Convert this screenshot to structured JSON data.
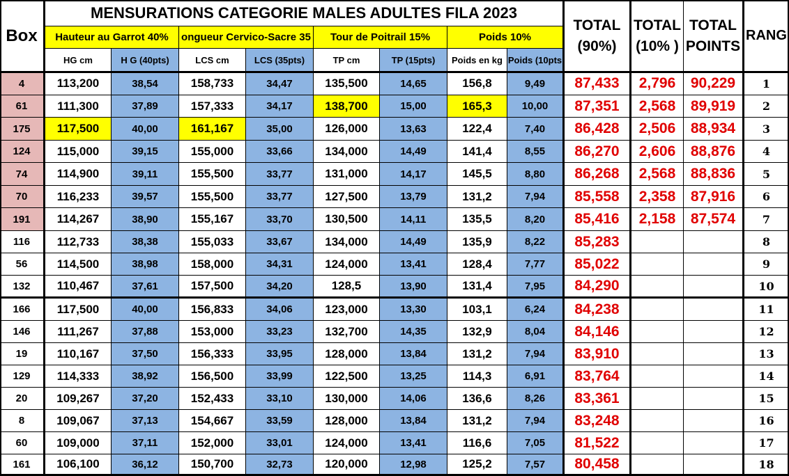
{
  "title": "MENSURATIONS CATEGORIE MALES ADULTES FILA 2023",
  "headers": {
    "box": "Box",
    "groups": [
      "Hauteur au Garrot 40%",
      "ongueur Cervico-Sacre 35",
      "Tour de Poitrail 15%",
      "Poids 10%"
    ],
    "sub": [
      "HG cm",
      "H G (40pts)",
      "LCS cm",
      "LCS (35pts)",
      "TP cm",
      "TP (15pts)",
      "Poids en kg",
      "Poids (10pts"
    ],
    "total90": [
      "TOTAL",
      "(90%)"
    ],
    "total10": [
      "TOTAL",
      "(10% )"
    ],
    "total_points": [
      "TOTAL",
      "POINTS"
    ],
    "rang": "RANG"
  },
  "rows": [
    {
      "box": "4",
      "hg": "113,200",
      "hg_pts": "38,54",
      "lcs": "158,733",
      "lcs_pts": "34,47",
      "tp": "135,500",
      "tp_pts": "14,65",
      "poids": "156,8",
      "poids_pts": "9,49",
      "total90": "87,433",
      "total10": "2,796",
      "total_points": "90,229",
      "rang": "1"
    },
    {
      "box": "61",
      "hg": "111,300",
      "hg_pts": "37,89",
      "lcs": "157,333",
      "lcs_pts": "34,17",
      "tp": "138,700",
      "tp_pts": "15,00",
      "poids": "165,3",
      "poids_pts": "10,00",
      "total90": "87,351",
      "total10": "2,568",
      "total_points": "89,919",
      "rang": "2"
    },
    {
      "box": "175",
      "hg": "117,500",
      "hg_pts": "40,00",
      "lcs": "161,167",
      "lcs_pts": "35,00",
      "tp": "126,000",
      "tp_pts": "13,63",
      "poids": "122,4",
      "poids_pts": "7,40",
      "total90": "86,428",
      "total10": "2,506",
      "total_points": "88,934",
      "rang": "3"
    },
    {
      "box": "124",
      "hg": "115,000",
      "hg_pts": "39,15",
      "lcs": "155,000",
      "lcs_pts": "33,66",
      "tp": "134,000",
      "tp_pts": "14,49",
      "poids": "141,4",
      "poids_pts": "8,55",
      "total90": "86,270",
      "total10": "2,606",
      "total_points": "88,876",
      "rang": "4"
    },
    {
      "box": "74",
      "hg": "114,900",
      "hg_pts": "39,11",
      "lcs": "155,500",
      "lcs_pts": "33,77",
      "tp": "131,000",
      "tp_pts": "14,17",
      "poids": "145,5",
      "poids_pts": "8,80",
      "total90": "86,268",
      "total10": "2,568",
      "total_points": "88,836",
      "rang": "5"
    },
    {
      "box": "70",
      "hg": "116,233",
      "hg_pts": "39,57",
      "lcs": "155,500",
      "lcs_pts": "33,77",
      "tp": "127,500",
      "tp_pts": "13,79",
      "poids": "131,2",
      "poids_pts": "7,94",
      "total90": "85,558",
      "total10": "2,358",
      "total_points": "87,916",
      "rang": "6"
    },
    {
      "box": "191",
      "hg": "114,267",
      "hg_pts": "38,90",
      "lcs": "155,167",
      "lcs_pts": "33,70",
      "tp": "130,500",
      "tp_pts": "14,11",
      "poids": "135,5",
      "poids_pts": "8,20",
      "total90": "85,416",
      "total10": "2,158",
      "total_points": "87,574",
      "rang": "7"
    },
    {
      "box": "116",
      "hg": "112,733",
      "hg_pts": "38,38",
      "lcs": "155,033",
      "lcs_pts": "33,67",
      "tp": "134,000",
      "tp_pts": "14,49",
      "poids": "135,9",
      "poids_pts": "8,22",
      "total90": "85,283",
      "total10": "",
      "total_points": "",
      "rang": "8"
    },
    {
      "box": "56",
      "hg": "114,500",
      "hg_pts": "38,98",
      "lcs": "158,000",
      "lcs_pts": "34,31",
      "tp": "124,000",
      "tp_pts": "13,41",
      "poids": "128,4",
      "poids_pts": "7,77",
      "total90": "85,022",
      "total10": "",
      "total_points": "",
      "rang": "9"
    },
    {
      "box": "132",
      "hg": "110,467",
      "hg_pts": "37,61",
      "lcs": "157,500",
      "lcs_pts": "34,20",
      "tp": "128,5",
      "tp_pts": "13,90",
      "poids": "131,4",
      "poids_pts": "7,95",
      "total90": "84,290",
      "total10": "",
      "total_points": "",
      "rang": "10"
    },
    {
      "box": "166",
      "hg": "117,500",
      "hg_pts": "40,00",
      "lcs": "156,833",
      "lcs_pts": "34,06",
      "tp": "123,000",
      "tp_pts": "13,30",
      "poids": "103,1",
      "poids_pts": "6,24",
      "total90": "84,238",
      "total10": "",
      "total_points": "",
      "rang": "11"
    },
    {
      "box": "146",
      "hg": "111,267",
      "hg_pts": "37,88",
      "lcs": "153,000",
      "lcs_pts": "33,23",
      "tp": "132,700",
      "tp_pts": "14,35",
      "poids": "132,9",
      "poids_pts": "8,04",
      "total90": "84,146",
      "total10": "",
      "total_points": "",
      "rang": "12"
    },
    {
      "box": "19",
      "hg": "110,167",
      "hg_pts": "37,50",
      "lcs": "156,333",
      "lcs_pts": "33,95",
      "tp": "128,000",
      "tp_pts": "13,84",
      "poids": "131,2",
      "poids_pts": "7,94",
      "total90": "83,910",
      "total10": "",
      "total_points": "",
      "rang": "13"
    },
    {
      "box": "129",
      "hg": "114,333",
      "hg_pts": "38,92",
      "lcs": "156,500",
      "lcs_pts": "33,99",
      "tp": "122,500",
      "tp_pts": "13,25",
      "poids": "114,3",
      "poids_pts": "6,91",
      "total90": "83,764",
      "total10": "",
      "total_points": "",
      "rang": "14"
    },
    {
      "box": "20",
      "hg": "109,267",
      "hg_pts": "37,20",
      "lcs": "152,433",
      "lcs_pts": "33,10",
      "tp": "130,000",
      "tp_pts": "14,06",
      "poids": "136,6",
      "poids_pts": "8,26",
      "total90": "83,361",
      "total10": "",
      "total_points": "",
      "rang": "15"
    },
    {
      "box": "8",
      "hg": "109,067",
      "hg_pts": "37,13",
      "lcs": "154,667",
      "lcs_pts": "33,59",
      "tp": "128,000",
      "tp_pts": "13,84",
      "poids": "131,2",
      "poids_pts": "7,94",
      "total90": "83,248",
      "total10": "",
      "total_points": "",
      "rang": "16"
    },
    {
      "box": "60",
      "hg": "109,000",
      "hg_pts": "37,11",
      "lcs": "152,000",
      "lcs_pts": "33,01",
      "tp": "124,000",
      "tp_pts": "13,41",
      "poids": "116,6",
      "poids_pts": "7,05",
      "total90": "81,522",
      "total10": "",
      "total_points": "",
      "rang": "17"
    },
    {
      "box": "161",
      "hg": "106,100",
      "hg_pts": "36,12",
      "lcs": "150,700",
      "lcs_pts": "32,73",
      "tp": "120,000",
      "tp_pts": "12,98",
      "poids": "125,2",
      "poids_pts": "7,57",
      "total90": "80,458",
      "total10": "",
      "total_points": "",
      "rang": "18"
    }
  ],
  "highlights": {
    "yellow": [
      [
        1,
        "tp"
      ],
      [
        1,
        "poids"
      ],
      [
        2,
        "hg"
      ],
      [
        2,
        "lcs"
      ]
    ],
    "pink_box_rows": 7
  },
  "colors": {
    "yellow": "#ffff00",
    "blue": "#8db4e2",
    "pink": "#e6b8b7",
    "red_text": "#e00000"
  }
}
